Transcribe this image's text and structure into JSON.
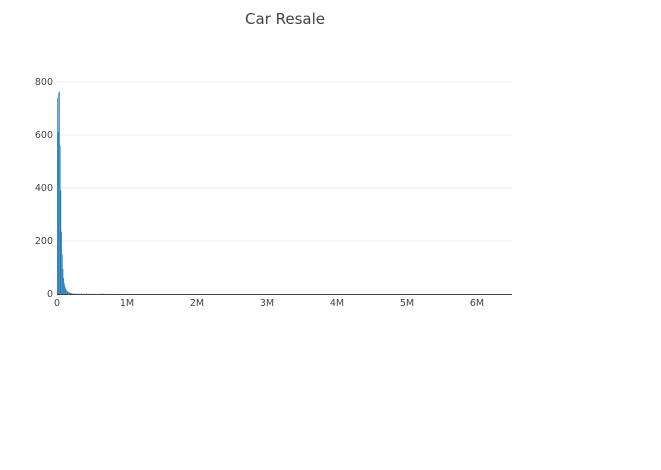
{
  "chart_data": {
    "type": "bar",
    "title": "Car Resale",
    "xlabel": "",
    "ylabel": "",
    "xlim": [
      0,
      6500000
    ],
    "ylim": [
      0,
      800
    ],
    "x_ticks": [
      {
        "value": 0,
        "label": "0"
      },
      {
        "value": 1000000,
        "label": "1M"
      },
      {
        "value": 2000000,
        "label": "2M"
      },
      {
        "value": 3000000,
        "label": "3M"
      },
      {
        "value": 4000000,
        "label": "4M"
      },
      {
        "value": 5000000,
        "label": "5M"
      },
      {
        "value": 6000000,
        "label": "6M"
      }
    ],
    "y_ticks": [
      {
        "value": 0,
        "label": "0"
      },
      {
        "value": 200,
        "label": "200"
      },
      {
        "value": 400,
        "label": "400"
      },
      {
        "value": 600,
        "label": "600"
      },
      {
        "value": 800,
        "label": "800"
      }
    ],
    "bin_width": 10000,
    "bins": [
      {
        "x": 0,
        "y": 740
      },
      {
        "x": 10000,
        "y": 610
      },
      {
        "x": 20000,
        "y": 760
      },
      {
        "x": 30000,
        "y": 765
      },
      {
        "x": 40000,
        "y": 560
      },
      {
        "x": 50000,
        "y": 390
      },
      {
        "x": 60000,
        "y": 235
      },
      {
        "x": 70000,
        "y": 150
      },
      {
        "x": 80000,
        "y": 95
      },
      {
        "x": 90000,
        "y": 60
      },
      {
        "x": 100000,
        "y": 40
      },
      {
        "x": 110000,
        "y": 28
      },
      {
        "x": 120000,
        "y": 20
      },
      {
        "x": 130000,
        "y": 15
      },
      {
        "x": 140000,
        "y": 11
      },
      {
        "x": 150000,
        "y": 9
      },
      {
        "x": 160000,
        "y": 7
      },
      {
        "x": 170000,
        "y": 6
      },
      {
        "x": 180000,
        "y": 5
      },
      {
        "x": 190000,
        "y": 4
      },
      {
        "x": 200000,
        "y": 4
      },
      {
        "x": 220000,
        "y": 3
      },
      {
        "x": 250000,
        "y": 3
      },
      {
        "x": 280000,
        "y": 2
      },
      {
        "x": 310000,
        "y": 2
      },
      {
        "x": 340000,
        "y": 2
      },
      {
        "x": 380000,
        "y": 1
      },
      {
        "x": 420000,
        "y": 3
      },
      {
        "x": 460000,
        "y": 1
      },
      {
        "x": 500000,
        "y": 2
      },
      {
        "x": 550000,
        "y": 1
      },
      {
        "x": 600000,
        "y": 1
      },
      {
        "x": 650000,
        "y": 2
      },
      {
        "x": 700000,
        "y": 1
      },
      {
        "x": 750000,
        "y": 1
      },
      {
        "x": 800000,
        "y": 1
      }
    ],
    "bar_color": "#1f77b4",
    "grid": true,
    "legend": "none"
  }
}
